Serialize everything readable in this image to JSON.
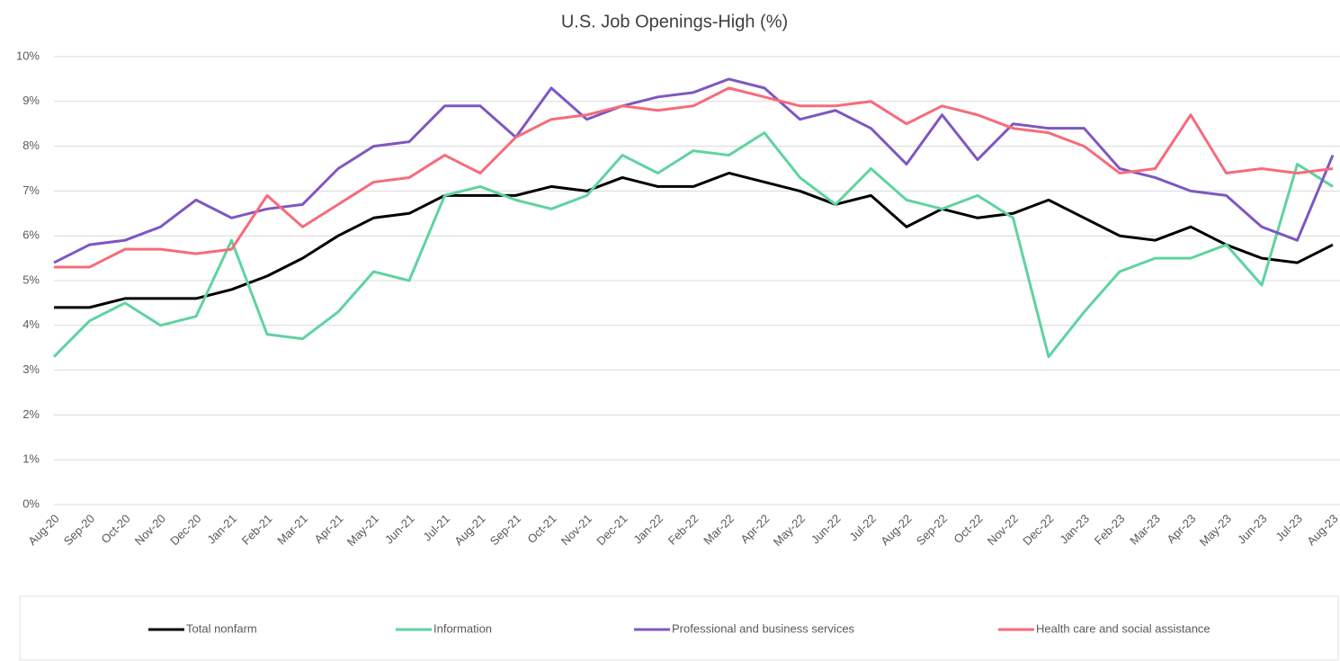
{
  "chart_data": {
    "type": "line",
    "title": "U.S. Job Openings-High (%)",
    "categories": [
      "Aug-20",
      "Sep-20",
      "Oct-20",
      "Nov-20",
      "Dec-20",
      "Jan-21",
      "Feb-21",
      "Mar-21",
      "Apr-21",
      "May-21",
      "Jun-21",
      "Jul-21",
      "Aug-21",
      "Sep-21",
      "Oct-21",
      "Nov-21",
      "Dec-21",
      "Jan-22",
      "Feb-22",
      "Mar-22",
      "Apr-22",
      "May-22",
      "Jun-22",
      "Jul-22",
      "Aug-22",
      "Sep-22",
      "Oct-22",
      "Nov-22",
      "Dec-22",
      "Jan-23",
      "Feb-23",
      "Mar-23",
      "Apr-23",
      "May-23",
      "Jun-23",
      "Jul-23",
      "Aug-23"
    ],
    "series": [
      {
        "name": "Total nonfarm",
        "color": "#000000",
        "values": [
          4.4,
          4.4,
          4.6,
          4.6,
          4.6,
          4.8,
          5.1,
          5.5,
          6.0,
          6.4,
          6.5,
          6.9,
          6.9,
          6.9,
          7.1,
          7.0,
          7.3,
          7.1,
          7.1,
          7.4,
          7.2,
          7.0,
          6.7,
          6.9,
          6.2,
          6.6,
          6.4,
          6.5,
          6.8,
          6.4,
          6.0,
          5.9,
          6.2,
          5.8,
          5.5,
          5.4,
          5.8
        ]
      },
      {
        "name": "Information",
        "color": "#5fd3a0",
        "values": [
          3.3,
          4.1,
          4.5,
          4.0,
          4.2,
          5.9,
          3.8,
          3.7,
          4.3,
          5.2,
          5.0,
          6.9,
          7.1,
          6.8,
          6.6,
          6.9,
          7.8,
          7.4,
          7.9,
          7.8,
          8.3,
          7.3,
          6.7,
          7.5,
          6.8,
          6.6,
          6.9,
          6.4,
          3.3,
          4.3,
          5.2,
          5.5,
          5.5,
          5.8,
          4.9,
          7.6,
          7.1
        ]
      },
      {
        "name": "Professional and business services",
        "color": "#7e57c2",
        "values": [
          5.4,
          5.8,
          5.9,
          6.2,
          6.8,
          6.4,
          6.6,
          6.7,
          7.5,
          8.0,
          8.1,
          8.9,
          8.9,
          8.2,
          9.3,
          8.6,
          8.9,
          9.1,
          9.2,
          9.5,
          9.3,
          8.6,
          8.8,
          8.4,
          7.6,
          8.7,
          7.7,
          8.5,
          8.4,
          8.4,
          7.5,
          7.3,
          7.0,
          6.9,
          6.2,
          5.9,
          7.8
        ]
      },
      {
        "name": "Health care and social assistance",
        "color": "#f76b7a",
        "values": [
          5.3,
          5.3,
          5.7,
          5.7,
          5.6,
          5.7,
          6.9,
          6.2,
          6.7,
          7.2,
          7.3,
          7.8,
          7.4,
          8.2,
          8.6,
          8.7,
          8.9,
          8.8,
          8.9,
          9.3,
          9.1,
          8.9,
          8.9,
          9.0,
          8.5,
          8.9,
          8.7,
          8.4,
          8.3,
          8.0,
          7.4,
          7.5,
          8.7,
          7.4,
          7.5,
          7.4,
          7.5
        ]
      }
    ],
    "ylim": [
      0,
      10
    ],
    "yticks": [
      {
        "value": 0,
        "label": "0%"
      },
      {
        "value": 1,
        "label": "1%"
      },
      {
        "value": 2,
        "label": "2%"
      },
      {
        "value": 3,
        "label": "3%"
      },
      {
        "value": 4,
        "label": "4%"
      },
      {
        "value": 5,
        "label": "5%"
      },
      {
        "value": 6,
        "label": "6%"
      },
      {
        "value": 7,
        "label": "7%"
      },
      {
        "value": 8,
        "label": "8%"
      },
      {
        "value": 9,
        "label": "9%"
      },
      {
        "value": 10,
        "label": "10%"
      }
    ],
    "grid": true,
    "legend": "bottom"
  }
}
